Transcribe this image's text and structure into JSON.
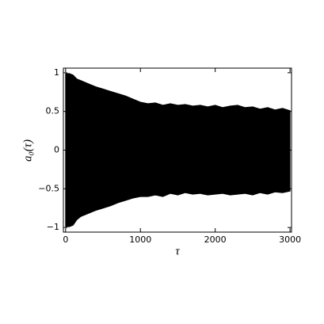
{
  "chart_data": {
    "type": "band",
    "x_label": "τ",
    "y_label": "a₀(τ)",
    "x": [
      0,
      50,
      100,
      150,
      200,
      300,
      400,
      500,
      600,
      700,
      800,
      900,
      1000,
      1100,
      1200,
      1300,
      1400,
      1500,
      1600,
      1700,
      1800,
      1900,
      2000,
      2100,
      2200,
      2300,
      2400,
      2500,
      2600,
      2700,
      2800,
      2900,
      3000
    ],
    "upper": [
      0.99,
      0.99,
      0.97,
      0.92,
      0.9,
      0.86,
      0.82,
      0.79,
      0.76,
      0.73,
      0.7,
      0.66,
      0.62,
      0.6,
      0.61,
      0.58,
      0.6,
      0.58,
      0.59,
      0.57,
      0.58,
      0.56,
      0.58,
      0.55,
      0.57,
      0.58,
      0.55,
      0.56,
      0.53,
      0.55,
      0.52,
      0.54,
      0.51
    ],
    "lower": [
      -0.99,
      -0.99,
      -0.97,
      -0.9,
      -0.86,
      -0.82,
      -0.78,
      -0.75,
      -0.72,
      -0.68,
      -0.65,
      -0.62,
      -0.6,
      -0.6,
      -0.58,
      -0.6,
      -0.56,
      -0.58,
      -0.55,
      -0.57,
      -0.56,
      -0.58,
      -0.57,
      -0.56,
      -0.58,
      -0.57,
      -0.56,
      -0.58,
      -0.55,
      -0.57,
      -0.54,
      -0.55,
      -0.53
    ],
    "color": "#000000",
    "xlim": [
      -30,
      3020
    ],
    "ylim": [
      -1.06,
      1.06
    ],
    "xticks": [
      0,
      1000,
      2000,
      3000
    ],
    "yticks": [
      {
        "value": -1,
        "label": "−1"
      },
      {
        "value": -0.5,
        "label": "−0.5"
      },
      0,
      0.5,
      1
    ]
  }
}
